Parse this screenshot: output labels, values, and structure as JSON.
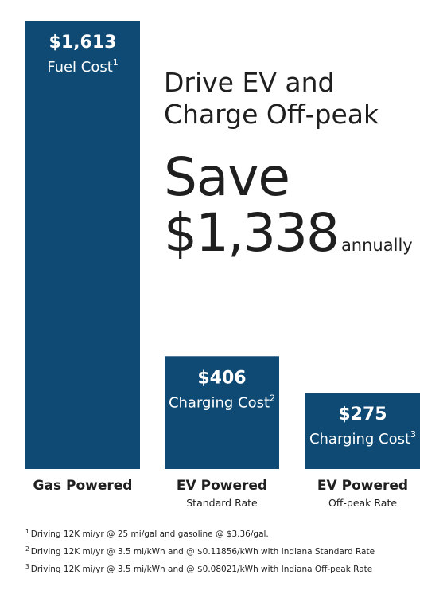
{
  "headline": {
    "line1": "Drive EV and",
    "line2": "Charge Off-peak"
  },
  "savings": {
    "word": "Save",
    "amount": "$1,338",
    "unit": "annually"
  },
  "colors": {
    "bar": "#0e4a74"
  },
  "chart_data": {
    "type": "bar",
    "title": "",
    "xlabel": "",
    "ylabel": "",
    "ylim": [
      0,
      1613
    ],
    "categories": [
      "Gas Powered",
      "EV Powered",
      "EV Powered"
    ],
    "category_subtitles": [
      "",
      "Standard Rate",
      "Off-peak Rate"
    ],
    "values": [
      1613,
      406,
      275
    ],
    "value_labels": [
      "$1,613",
      "$406",
      "$275"
    ],
    "bar_labels": [
      "Fuel Cost",
      "Charging Cost",
      "Charging Cost"
    ],
    "footnote_marks": [
      "1",
      "2",
      "3"
    ]
  },
  "footnotes": [
    {
      "mark": "1",
      "text": "Driving 12K mi/yr @ 25 mi/gal and gasoline @ $3.36/gal."
    },
    {
      "mark": "2",
      "text": "Driving 12K mi/yr @ 3.5 mi/kWh and @ $0.11856/kWh with Indiana Standard Rate"
    },
    {
      "mark": "3",
      "text": "Driving 12K mi/yr @ 3.5 mi/kWh and @ $0.08021/kWh with Indiana Off-peak Rate"
    }
  ]
}
